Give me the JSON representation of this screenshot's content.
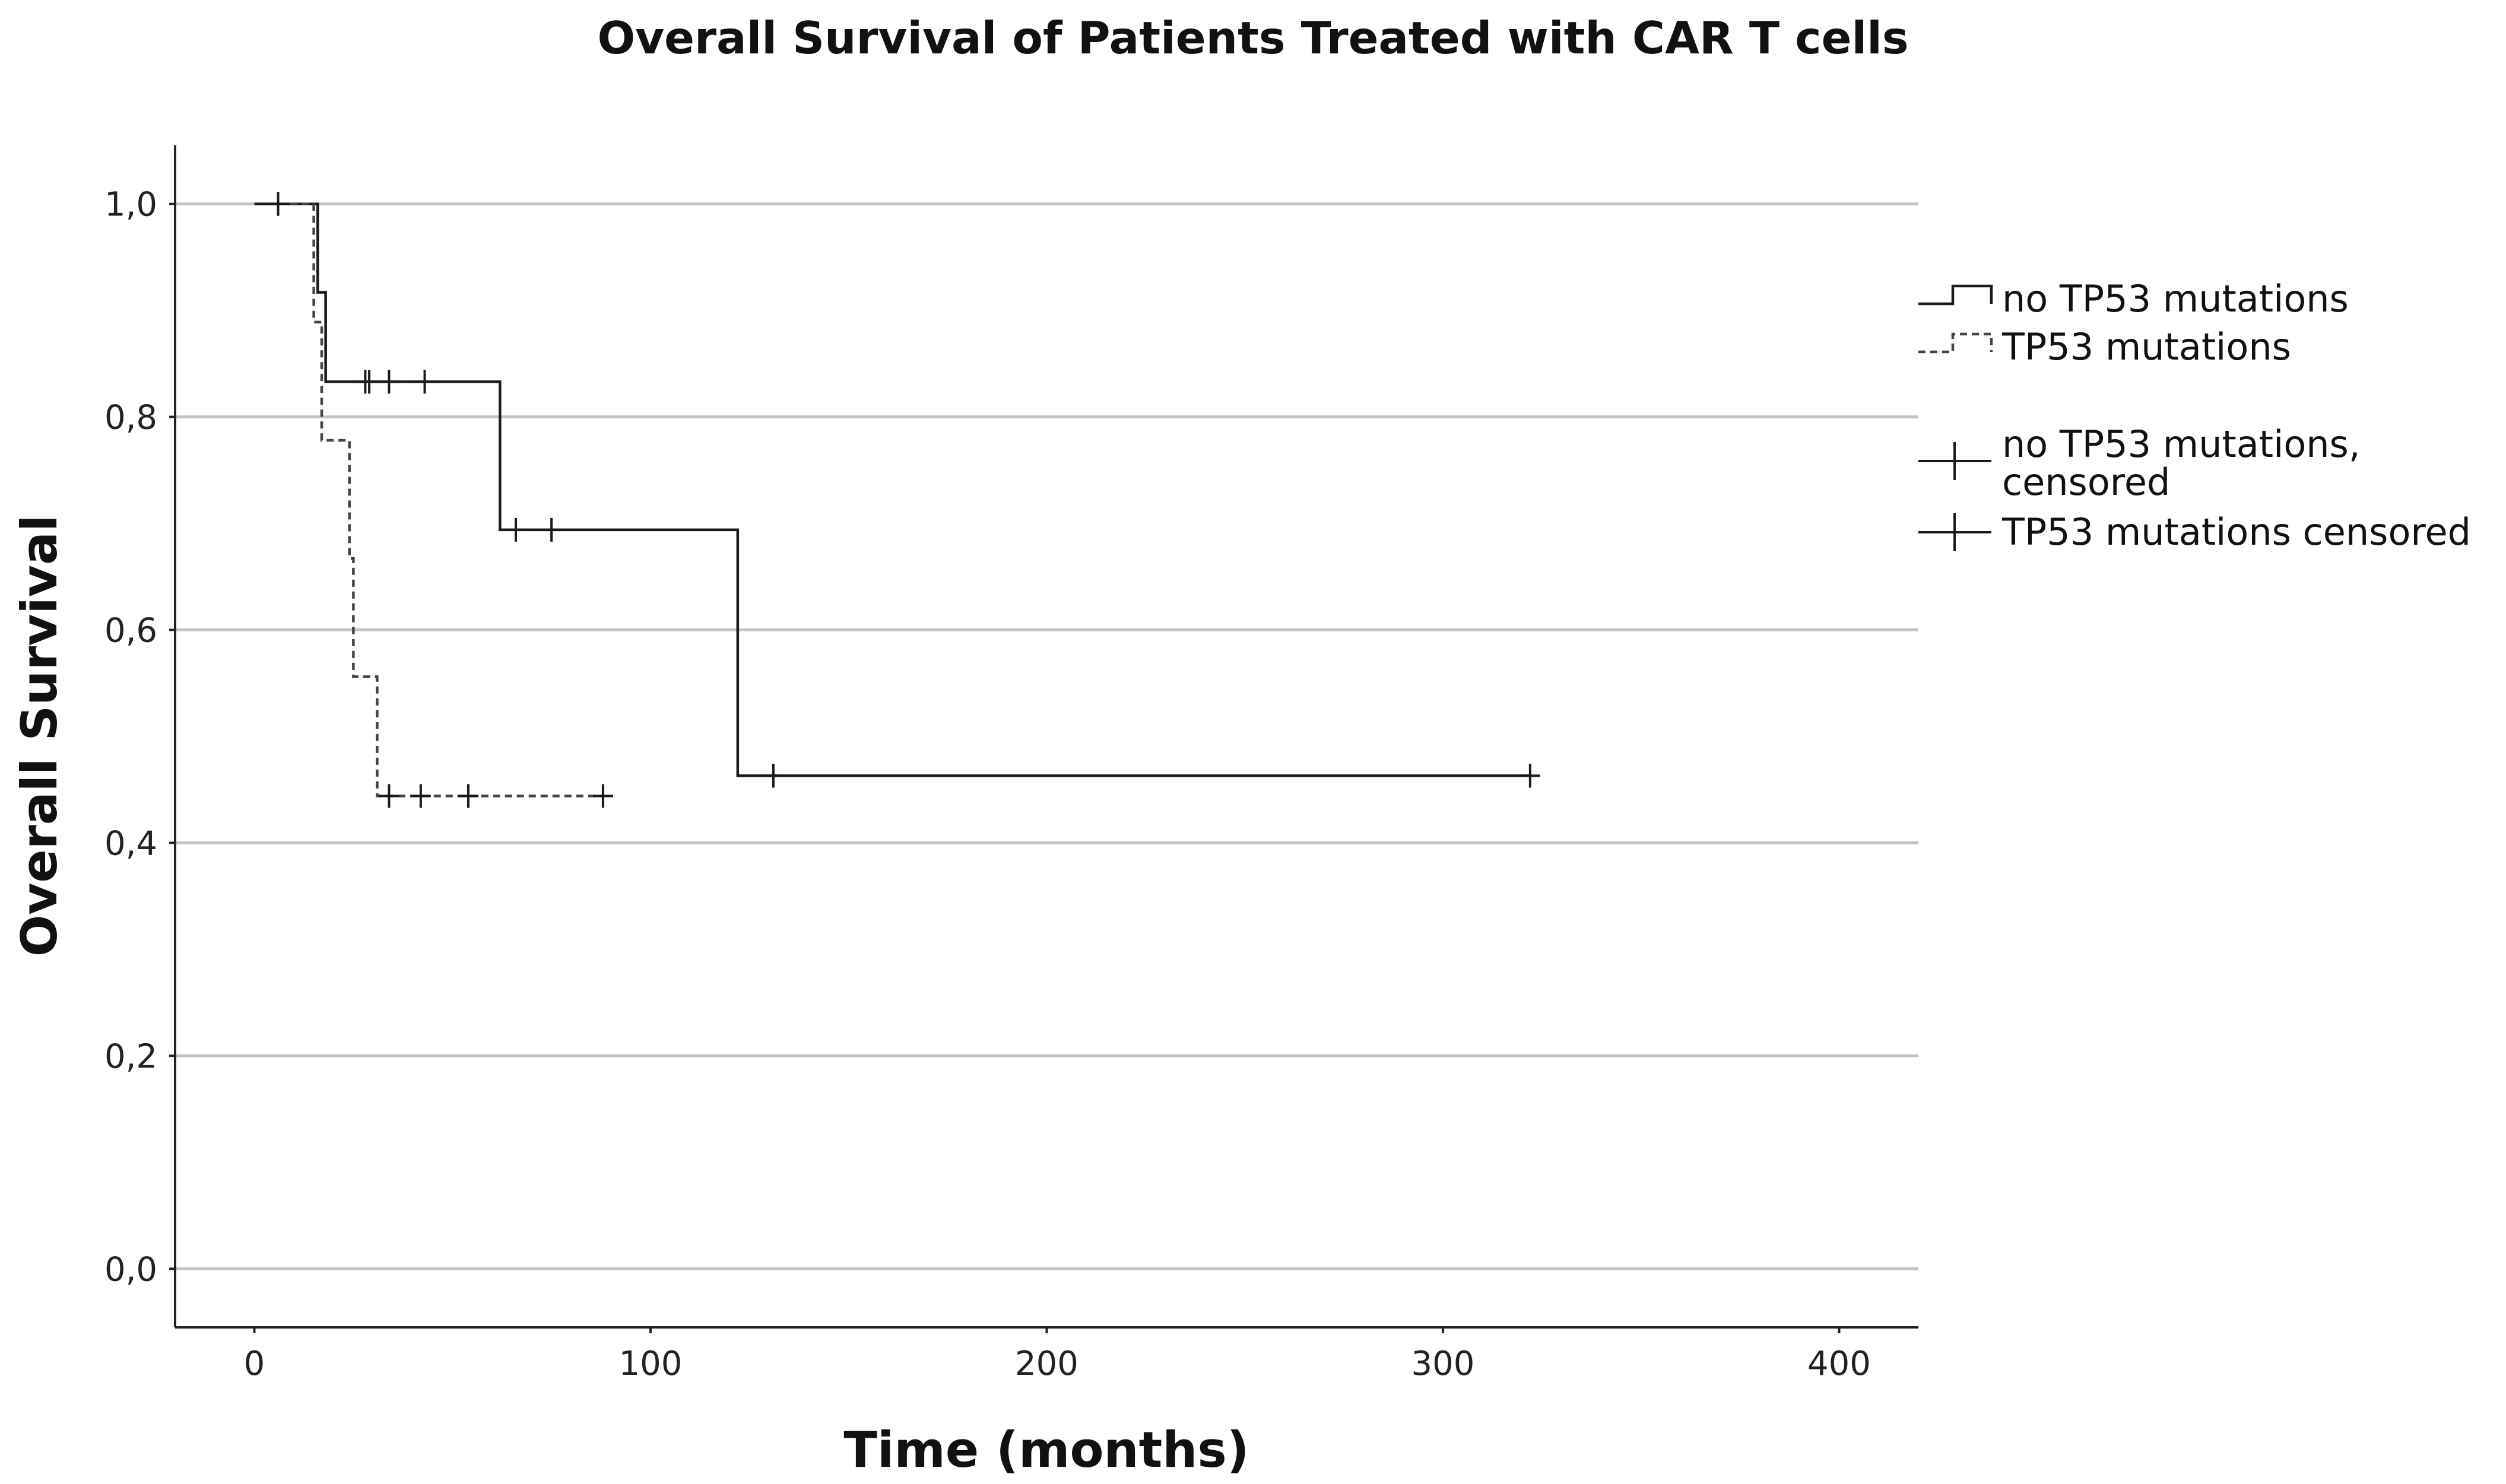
{
  "chart_data": {
    "type": "line",
    "subtype": "kaplan-meier step",
    "title": "Overall Survival of Patients Treated with CAR T cells",
    "xlabel": "Time (months)",
    "ylabel": "Overall Survival",
    "xlim": [
      -20,
      420
    ],
    "ylim": [
      -0.055,
      1.055
    ],
    "x_ticks": [
      0,
      100,
      200,
      300,
      400
    ],
    "x_tick_labels": [
      "0",
      "100",
      "200",
      "300",
      "400"
    ],
    "y_ticks": [
      0.0,
      0.2,
      0.4,
      0.6,
      0.8,
      1.0
    ],
    "y_tick_labels": [
      "0,0",
      "0,2",
      "0,4",
      "0,6",
      "0,8",
      "1,0"
    ],
    "grid": "horizontal",
    "legend_position": "right",
    "series": [
      {
        "name": "no TP53 mutations",
        "line_style": "solid",
        "steps": [
          [
            0,
            1.0
          ],
          [
            16,
            0.917
          ],
          [
            18,
            0.833
          ],
          [
            62,
            0.694
          ],
          [
            122,
            0.463
          ],
          [
            322,
            0.463
          ]
        ],
        "censored": [
          [
            28,
            0.833
          ],
          [
            29,
            0.833
          ],
          [
            34,
            0.833
          ],
          [
            43,
            0.833
          ],
          [
            66,
            0.694
          ],
          [
            75,
            0.694
          ],
          [
            131,
            0.463
          ],
          [
            322,
            0.463
          ]
        ]
      },
      {
        "name": "TP53 mutations",
        "line_style": "dashed",
        "steps": [
          [
            6,
            1.0
          ],
          [
            15,
            0.889
          ],
          [
            17,
            0.778
          ],
          [
            24,
            0.667
          ],
          [
            25,
            0.556
          ],
          [
            31,
            0.444
          ],
          [
            88,
            0.444
          ]
        ],
        "censored": [
          [
            6,
            1.0
          ],
          [
            34,
            0.444
          ],
          [
            42,
            0.444
          ],
          [
            54,
            0.444
          ],
          [
            88,
            0.444
          ]
        ]
      }
    ],
    "legend": [
      {
        "label": "no TP53 mutations",
        "symbol": "solid-step"
      },
      {
        "label": "TP53 mutations",
        "symbol": "dashed-step"
      },
      {
        "label_lines": [
          "no TP53 mutations,",
          "censored"
        ],
        "symbol": "cross"
      },
      {
        "label": "TP53 mutations censored",
        "symbol": "cross"
      }
    ]
  }
}
